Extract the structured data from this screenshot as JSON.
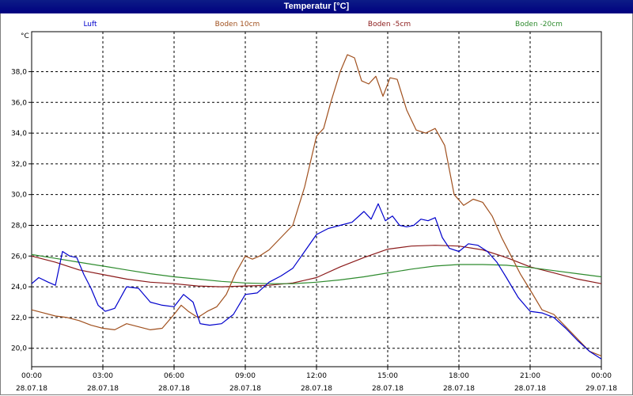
{
  "window": {
    "title": "Temperatur [°C]"
  },
  "chart_data": {
    "type": "line",
    "title": "Temperatur [°C]",
    "ylabel": "°C",
    "xlabel": "",
    "ylim": [
      18.8,
      40.6
    ],
    "yticks": [
      20,
      22,
      24,
      26,
      28,
      30,
      32,
      34,
      36,
      38
    ],
    "ytick_labels": [
      "20,0",
      "22,0",
      "24,0",
      "26,0",
      "28,0",
      "30,0",
      "32,0",
      "34,0",
      "36,0",
      "38,0"
    ],
    "xlim": [
      0,
      24
    ],
    "xticks": [
      0,
      3,
      6,
      9,
      12,
      15,
      18,
      21,
      24
    ],
    "xtick_labels": [
      [
        "00:00",
        "28.07.18"
      ],
      [
        "03:00",
        "28.07.18"
      ],
      [
        "06:00",
        "28.07.18"
      ],
      [
        "09:00",
        "28.07.18"
      ],
      [
        "12:00",
        "28.07.18"
      ],
      [
        "15:00",
        "28.07.18"
      ],
      [
        "18:00",
        "28.07.18"
      ],
      [
        "21:00",
        "28.07.18"
      ],
      [
        "00:00",
        "29.07.18"
      ]
    ],
    "grid": true,
    "legend_position": "top",
    "series": [
      {
        "name": "Luft",
        "color": "#0000cc",
        "x": [
          0,
          0.3,
          0.7,
          1.0,
          1.3,
          1.6,
          1.9,
          2.2,
          2.5,
          2.8,
          3.1,
          3.5,
          4.0,
          4.5,
          5.0,
          5.5,
          6.0,
          6.4,
          6.8,
          7.1,
          7.5,
          8.0,
          8.5,
          9.0,
          9.5,
          10.0,
          10.5,
          11.0,
          11.5,
          12.0,
          12.5,
          13.0,
          13.5,
          14.0,
          14.3,
          14.6,
          14.9,
          15.2,
          15.5,
          15.8,
          16.1,
          16.4,
          16.7,
          17.0,
          17.3,
          17.6,
          18.0,
          18.4,
          18.8,
          19.2,
          19.6,
          20.0,
          20.5,
          21.0,
          21.5,
          22.0,
          22.5,
          23.0,
          23.5,
          24.0
        ],
        "y": [
          24.2,
          24.6,
          24.3,
          24.1,
          26.3,
          26.0,
          25.9,
          24.8,
          23.9,
          22.8,
          22.4,
          22.6,
          24.0,
          23.9,
          23.0,
          22.8,
          22.7,
          23.5,
          23.0,
          21.6,
          21.5,
          21.6,
          22.2,
          23.5,
          23.6,
          24.3,
          24.7,
          25.2,
          26.3,
          27.4,
          27.8,
          28.0,
          28.2,
          28.9,
          28.4,
          29.4,
          28.3,
          28.6,
          28.0,
          27.9,
          28.0,
          28.4,
          28.3,
          28.5,
          27.2,
          26.5,
          26.3,
          26.8,
          26.7,
          26.3,
          25.6,
          24.6,
          23.3,
          22.4,
          22.3,
          22.0,
          21.3,
          20.5,
          19.8,
          19.3
        ]
      },
      {
        "name": "Boden 10cm",
        "color": "#a0501e",
        "x": [
          0,
          0.5,
          1.0,
          1.5,
          2.0,
          2.5,
          3.0,
          3.5,
          4.0,
          4.5,
          5.0,
          5.5,
          6.0,
          6.3,
          6.6,
          7.0,
          7.4,
          7.8,
          8.2,
          8.6,
          9.0,
          9.3,
          9.6,
          10.0,
          10.5,
          11.0,
          11.5,
          12.0,
          12.3,
          12.6,
          13.0,
          13.3,
          13.6,
          13.9,
          14.2,
          14.5,
          14.8,
          15.1,
          15.4,
          15.8,
          16.2,
          16.6,
          17.0,
          17.4,
          17.8,
          18.2,
          18.6,
          19.0,
          19.4,
          19.8,
          20.2,
          20.6,
          21.0,
          21.5,
          22.0,
          22.5,
          23.0,
          23.5,
          24.0
        ],
        "y": [
          22.5,
          22.3,
          22.1,
          22.0,
          21.8,
          21.5,
          21.3,
          21.2,
          21.6,
          21.4,
          21.2,
          21.3,
          22.2,
          22.8,
          22.4,
          22.0,
          22.4,
          22.7,
          23.5,
          24.9,
          26.0,
          25.8,
          26.0,
          26.4,
          27.2,
          28.0,
          30.5,
          33.8,
          34.3,
          36.0,
          38.0,
          39.1,
          38.9,
          37.4,
          37.2,
          37.7,
          36.4,
          37.6,
          37.5,
          35.5,
          34.2,
          34.0,
          34.3,
          33.2,
          30.0,
          29.3,
          29.7,
          29.5,
          28.6,
          27.2,
          26.0,
          24.8,
          23.8,
          22.5,
          22.2,
          21.4,
          20.6,
          19.8,
          19.5
        ]
      },
      {
        "name": "Boden -5cm",
        "color": "#8b1a1a",
        "x": [
          0,
          1,
          2,
          3,
          4,
          5,
          6,
          7,
          8,
          9,
          10,
          11,
          12,
          13,
          14,
          15,
          16,
          17,
          18,
          19,
          20,
          21,
          22,
          23,
          24
        ],
        "y": [
          26.0,
          25.6,
          25.1,
          24.8,
          24.5,
          24.3,
          24.2,
          24.05,
          24.0,
          24.05,
          24.1,
          24.25,
          24.6,
          25.3,
          25.9,
          26.45,
          26.65,
          26.7,
          26.65,
          26.4,
          25.9,
          25.3,
          24.9,
          24.5,
          24.2
        ]
      },
      {
        "name": "Boden -20cm",
        "color": "#2e8b2e",
        "x": [
          0,
          1,
          2,
          3,
          4,
          5,
          6,
          7,
          8,
          9,
          10,
          11,
          12,
          13,
          14,
          15,
          16,
          17,
          18,
          19,
          20,
          21,
          22,
          23,
          24
        ],
        "y": [
          26.1,
          25.85,
          25.6,
          25.35,
          25.1,
          24.85,
          24.65,
          24.5,
          24.35,
          24.25,
          24.2,
          24.2,
          24.3,
          24.45,
          24.65,
          24.9,
          25.15,
          25.35,
          25.45,
          25.45,
          25.4,
          25.25,
          25.05,
          24.85,
          24.65
        ]
      }
    ]
  }
}
